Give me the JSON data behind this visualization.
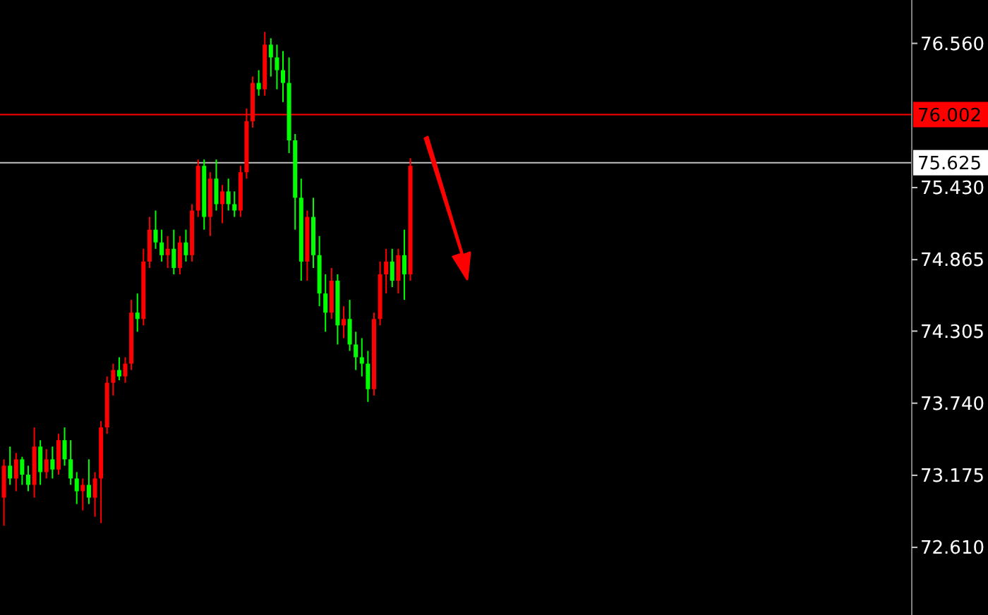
{
  "chart_data": {
    "type": "candlestick",
    "categories": [
      null,
      null,
      null,
      null,
      null,
      null,
      null,
      null,
      null,
      null,
      null,
      null,
      null,
      null,
      null,
      null,
      null,
      null,
      null,
      null,
      null,
      null,
      null,
      null,
      null,
      null,
      null,
      null,
      null,
      null,
      null,
      null,
      null,
      null,
      null,
      null,
      null,
      null,
      null,
      null,
      null,
      null,
      null,
      null,
      null,
      null,
      null,
      null,
      null,
      null,
      null,
      null,
      null,
      null,
      null,
      null,
      null,
      null,
      null,
      null,
      null,
      null,
      null,
      null,
      null,
      null,
      null,
      null,
      null,
      null,
      null,
      null,
      null,
      null,
      null,
      null,
      null,
      null,
      null,
      null,
      null,
      null,
      null,
      null,
      null,
      null,
      null,
      null,
      null,
      null,
      null,
      null,
      null,
      null,
      null,
      null,
      null,
      null,
      null,
      null,
      null,
      null,
      null,
      null,
      null,
      null,
      null,
      null,
      null,
      null,
      null,
      null,
      null,
      null,
      null,
      null,
      null,
      null,
      null,
      null,
      null,
      null,
      null,
      null,
      null,
      null,
      null,
      null,
      null,
      null,
      null,
      null,
      null,
      null,
      null,
      null,
      null,
      null,
      null,
      null,
      null,
      null,
      null,
      null,
      null,
      null,
      null,
      null,
      null,
      null
    ],
    "ohlc": [
      [
        73.0,
        73.3,
        72.78,
        73.25
      ],
      [
        73.25,
        73.4,
        73.1,
        73.15
      ],
      [
        73.15,
        73.35,
        73.05,
        73.3
      ],
      [
        73.3,
        73.32,
        73.1,
        73.18
      ],
      [
        73.18,
        73.25,
        73.05,
        73.1
      ],
      [
        73.1,
        73.55,
        73.0,
        73.4
      ],
      [
        73.4,
        73.45,
        73.1,
        73.2
      ],
      [
        73.2,
        73.38,
        73.15,
        73.3
      ],
      [
        73.3,
        73.4,
        73.15,
        73.22
      ],
      [
        73.22,
        73.5,
        73.18,
        73.45
      ],
      [
        73.45,
        73.55,
        73.25,
        73.3
      ],
      [
        73.3,
        73.45,
        73.1,
        73.15
      ],
      [
        73.15,
        73.2,
        72.95,
        73.05
      ],
      [
        73.05,
        73.15,
        72.9,
        73.1
      ],
      [
        73.1,
        73.3,
        72.95,
        73.0
      ],
      [
        73.0,
        73.2,
        72.85,
        73.15
      ],
      [
        73.15,
        73.6,
        72.8,
        73.55
      ],
      [
        73.55,
        73.95,
        73.5,
        73.9
      ],
      [
        73.9,
        74.05,
        73.8,
        74.0
      ],
      [
        74.0,
        74.1,
        73.92,
        73.95
      ],
      [
        73.95,
        74.1,
        73.9,
        74.05
      ],
      [
        74.05,
        74.55,
        74.0,
        74.45
      ],
      [
        74.45,
        74.6,
        74.3,
        74.4
      ],
      [
        74.4,
        74.95,
        74.35,
        74.85
      ],
      [
        74.85,
        75.2,
        74.8,
        75.1
      ],
      [
        75.1,
        75.25,
        74.95,
        75.0
      ],
      [
        75.0,
        75.1,
        74.85,
        74.9
      ],
      [
        74.9,
        75.05,
        74.8,
        74.95
      ],
      [
        74.95,
        75.1,
        74.75,
        74.8
      ],
      [
        74.8,
        75.05,
        74.75,
        75.0
      ],
      [
        75.0,
        75.1,
        74.85,
        74.9
      ],
      [
        74.9,
        75.3,
        74.85,
        75.25
      ],
      [
        75.25,
        75.65,
        75.2,
        75.6
      ],
      [
        75.6,
        75.65,
        75.1,
        75.2
      ],
      [
        75.2,
        75.55,
        75.05,
        75.5
      ],
      [
        75.5,
        75.65,
        75.25,
        75.3
      ],
      [
        75.3,
        75.45,
        75.15,
        75.4
      ],
      [
        75.4,
        75.5,
        75.25,
        75.3
      ],
      [
        75.3,
        75.4,
        75.2,
        75.25
      ],
      [
        75.25,
        75.6,
        75.2,
        75.55
      ],
      [
        75.55,
        76.05,
        75.5,
        75.95
      ],
      [
        75.95,
        76.3,
        75.9,
        76.25
      ],
      [
        76.25,
        76.35,
        76.15,
        76.2
      ],
      [
        76.2,
        76.65,
        76.15,
        76.55
      ],
      [
        76.55,
        76.6,
        76.3,
        76.45
      ],
      [
        76.45,
        76.55,
        76.2,
        76.35
      ],
      [
        76.35,
        76.5,
        76.1,
        76.25
      ],
      [
        76.25,
        76.45,
        75.7,
        75.8
      ],
      [
        75.8,
        75.85,
        75.1,
        75.35
      ],
      [
        75.35,
        75.5,
        74.7,
        74.85
      ],
      [
        74.85,
        75.25,
        74.7,
        75.2
      ],
      [
        75.2,
        75.35,
        74.8,
        74.9
      ],
      [
        74.9,
        75.05,
        74.5,
        74.6
      ],
      [
        74.6,
        74.75,
        74.3,
        74.45
      ],
      [
        74.45,
        74.8,
        74.4,
        74.7
      ],
      [
        74.7,
        74.75,
        74.2,
        74.35
      ],
      [
        74.35,
        74.5,
        74.25,
        74.4
      ],
      [
        74.4,
        74.55,
        74.15,
        74.2
      ],
      [
        74.2,
        74.3,
        74.0,
        74.1
      ],
      [
        74.1,
        74.25,
        73.95,
        74.05
      ],
      [
        74.05,
        74.15,
        73.75,
        73.85
      ],
      [
        73.85,
        74.45,
        73.8,
        74.4
      ],
      [
        74.4,
        74.85,
        74.35,
        74.75
      ],
      [
        74.75,
        74.95,
        74.6,
        74.85
      ],
      [
        74.85,
        74.95,
        74.65,
        74.7
      ],
      [
        74.7,
        74.95,
        74.6,
        74.9
      ],
      [
        74.9,
        75.1,
        74.55,
        74.75
      ],
      [
        74.75,
        75.66,
        74.7,
        75.6
      ],
      null,
      null,
      null,
      null,
      null,
      null,
      null,
      null,
      null,
      null,
      null,
      null,
      null,
      null,
      null,
      null,
      null,
      null,
      null,
      null,
      null,
      null,
      null,
      null,
      null,
      null,
      null,
      null,
      null,
      null,
      null,
      null,
      null,
      null,
      null,
      null,
      null,
      null,
      null,
      null,
      null,
      null,
      null,
      null,
      null,
      null,
      null,
      null,
      null,
      null,
      null,
      null,
      null,
      null,
      null,
      null,
      null,
      null,
      null,
      null,
      null,
      null,
      null,
      null,
      null,
      null,
      null,
      null,
      null,
      null,
      null,
      null,
      null,
      null,
      null,
      null,
      null,
      null,
      null,
      null,
      null,
      null
    ],
    "colors": [
      "#ff0000",
      "#00ff00",
      "#ff0000",
      "#00ff00",
      "#00ff00",
      "#ff0000",
      "#00ff00",
      "#ff0000",
      "#00ff00",
      "#ff0000",
      "#00ff00",
      "#00ff00",
      "#00ff00",
      "#ff0000",
      "#00ff00",
      "#ff0000",
      "#ff0000",
      "#ff0000",
      "#ff0000",
      "#00ff00",
      "#ff0000",
      "#ff0000",
      "#00ff00",
      "#ff0000",
      "#ff0000",
      "#00ff00",
      "#00ff00",
      "#ff0000",
      "#00ff00",
      "#ff0000",
      "#00ff00",
      "#ff0000",
      "#ff0000",
      "#00ff00",
      "#ff0000",
      "#00ff00",
      "#ff0000",
      "#00ff00",
      "#00ff00",
      "#ff0000",
      "#ff0000",
      "#ff0000",
      "#00ff00",
      "#ff0000",
      "#00ff00",
      "#00ff00",
      "#00ff00",
      "#00ff00",
      "#00ff00",
      "#00ff00",
      "#ff0000",
      "#00ff00",
      "#00ff00",
      "#00ff00",
      "#ff0000",
      "#00ff00",
      "#ff0000",
      "#00ff00",
      "#00ff00",
      "#00ff00",
      "#00ff00",
      "#ff0000",
      "#ff0000",
      "#ff0000",
      "#00ff00",
      "#ff0000",
      "#00ff00",
      "#ff0000",
      null,
      null,
      null,
      null,
      null,
      null,
      null,
      null,
      null,
      null,
      null,
      null,
      null,
      null,
      null,
      null,
      null,
      null,
      null,
      null,
      null,
      null,
      null,
      null,
      null,
      null,
      null,
      null,
      null,
      null,
      null,
      null,
      null,
      null,
      null,
      null,
      null,
      null,
      null,
      null,
      null,
      null,
      null,
      null,
      null,
      null,
      null,
      null,
      null,
      null,
      null,
      null,
      null,
      null,
      null,
      null,
      null,
      null,
      null,
      null,
      null,
      null,
      null,
      null,
      null,
      null,
      null,
      null,
      null,
      null,
      null,
      null,
      null,
      null,
      null,
      null,
      null,
      null,
      null,
      null,
      null,
      null
    ],
    "ylim": [
      72.08,
      76.9
    ],
    "yticks": [
      {
        "value": 76.56,
        "label": "76.560"
      },
      {
        "value": 75.43,
        "label": "75.430"
      },
      74.865,
      74.305,
      {
        "value": 73.74,
        "label": "73.740"
      },
      73.175,
      {
        "value": 72.61,
        "label": "72.610"
      }
    ],
    "ref_lines": [
      {
        "axis": "y",
        "value": 76.002,
        "label": "76.002",
        "color": "#ff0000"
      },
      {
        "axis": "y",
        "value": 75.625,
        "label": "75.625",
        "color": "#c0c0c0"
      }
    ],
    "grid": false
  }
}
